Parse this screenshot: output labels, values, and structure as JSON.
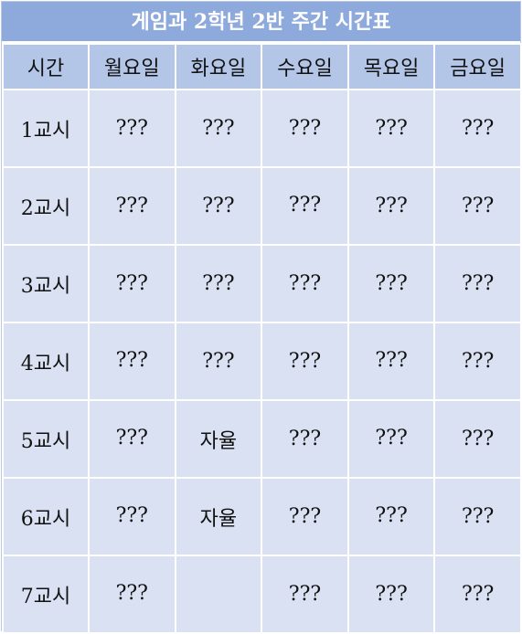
{
  "title": "게임과 2학년 2반 주간 시간표",
  "headers": [
    "시간",
    "월요일",
    "화요일",
    "수요일",
    "목요일",
    "금요일"
  ],
  "rows": [
    {
      "period": "1교시",
      "cells": [
        "???",
        "???",
        "???",
        "???",
        "???"
      ]
    },
    {
      "period": "2교시",
      "cells": [
        "???",
        "???",
        "???",
        "???",
        "???"
      ]
    },
    {
      "period": "3교시",
      "cells": [
        "???",
        "???",
        "???",
        "???",
        "???"
      ]
    },
    {
      "period": "4교시",
      "cells": [
        "???",
        "???",
        "???",
        "???",
        "???"
      ]
    },
    {
      "period": "5교시",
      "cells": [
        "???",
        "자율",
        "???",
        "???",
        "???"
      ]
    },
    {
      "period": "6교시",
      "cells": [
        "???",
        "자율",
        "???",
        "???",
        "???"
      ]
    },
    {
      "period": "7교시",
      "cells": [
        "???",
        "",
        "???",
        "???",
        "???"
      ]
    }
  ],
  "colors": {
    "title_bg": "#8ea9db",
    "header_bg": "#b4c6e7",
    "cell_bg": "#d9e1f2",
    "grid_line": "#ffffff"
  }
}
